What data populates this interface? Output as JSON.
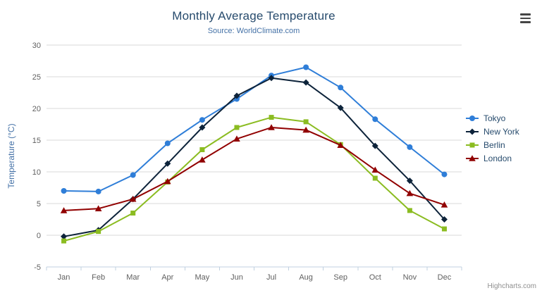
{
  "header": {
    "title": "Monthly Average Temperature",
    "subtitle": "Source: WorldClimate.com"
  },
  "icons": {
    "export_menu": "hamburger-menu"
  },
  "credits": {
    "label": "Highcharts.com"
  },
  "chart_data": {
    "type": "line",
    "title": "Monthly Average Temperature",
    "subtitle": "Source: WorldClimate.com",
    "categories": [
      "Jan",
      "Feb",
      "Mar",
      "Apr",
      "May",
      "Jun",
      "Jul",
      "Aug",
      "Sep",
      "Oct",
      "Nov",
      "Dec"
    ],
    "xlabel": "",
    "ylabel": "Temperature (°C)",
    "ylim": [
      -5,
      30
    ],
    "ytick_step": 5,
    "grid": true,
    "legend_position": "right",
    "series": [
      {
        "name": "Tokyo",
        "color": "#2f7ed8",
        "marker": "circle",
        "values": [
          7.0,
          6.9,
          9.5,
          14.5,
          18.2,
          21.5,
          25.2,
          26.5,
          23.3,
          18.3,
          13.9,
          9.6
        ]
      },
      {
        "name": "New York",
        "color": "#0d233a",
        "marker": "diamond",
        "values": [
          -0.2,
          0.8,
          5.7,
          11.3,
          17.0,
          22.0,
          24.8,
          24.1,
          20.1,
          14.1,
          8.6,
          2.5
        ]
      },
      {
        "name": "Berlin",
        "color": "#8bbc21",
        "marker": "square",
        "values": [
          -0.9,
          0.6,
          3.5,
          8.4,
          13.5,
          17.0,
          18.6,
          17.9,
          14.3,
          9.0,
          3.9,
          1.0
        ]
      },
      {
        "name": "London",
        "color": "#910000",
        "marker": "triangle",
        "values": [
          3.9,
          4.2,
          5.7,
          8.5,
          11.9,
          15.2,
          17.0,
          16.6,
          14.2,
          10.3,
          6.6,
          4.8
        ]
      }
    ]
  }
}
